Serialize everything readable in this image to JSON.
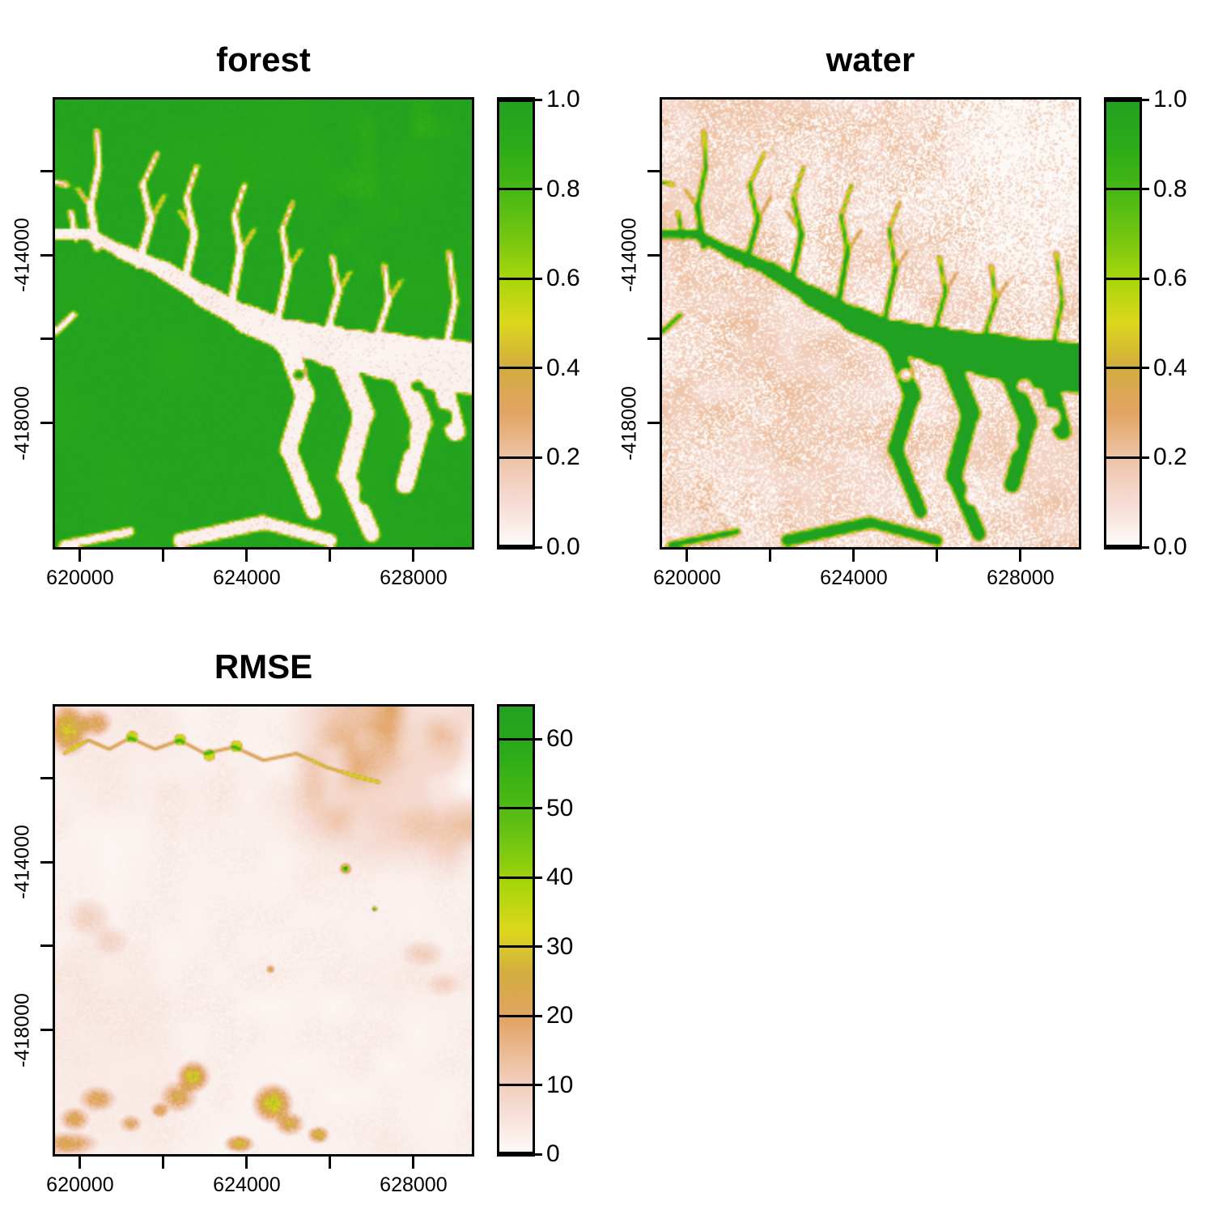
{
  "figure": {
    "background": "#ffffff",
    "text_color": "#000000",
    "layout": "2x2 grid, bottom-right cell empty"
  },
  "palette": {
    "description": "shared raster color ramp, low to high",
    "stops": [
      {
        "t": 0.0,
        "color": "#fdfbfa"
      },
      {
        "t": 0.1,
        "color": "#f6dcd3"
      },
      {
        "t": 0.2,
        "color": "#eec3a6"
      },
      {
        "t": 0.3,
        "color": "#e2a463"
      },
      {
        "t": 0.4,
        "color": "#d2ab41"
      },
      {
        "t": 0.5,
        "color": "#dcd71c"
      },
      {
        "t": 0.6,
        "color": "#a8d60b"
      },
      {
        "t": 0.7,
        "color": "#70c511"
      },
      {
        "t": 0.8,
        "color": "#46b714"
      },
      {
        "t": 0.9,
        "color": "#2caa1a"
      },
      {
        "t": 1.0,
        "color": "#21a121"
      }
    ]
  },
  "chart_data": [
    {
      "type": "heatmap",
      "title": "forest",
      "x_range": [
        619400,
        629400
      ],
      "y_range": [
        -420950,
        -410300
      ],
      "x_ticks": [
        {
          "value": 620000,
          "label": "620000"
        },
        {
          "value": 622000,
          "label": ""
        },
        {
          "value": 624000,
          "label": "624000"
        },
        {
          "value": 626000,
          "label": ""
        },
        {
          "value": 628000,
          "label": "628000"
        }
      ],
      "y_ticks": [
        {
          "value": -412000,
          "label": ""
        },
        {
          "value": -414000,
          "label": "-414000"
        },
        {
          "value": -416000,
          "label": ""
        },
        {
          "value": -418000,
          "label": "-418000"
        }
      ],
      "legend": {
        "min": 0,
        "max": 1,
        "ticks": [
          {
            "value": 1.0,
            "label": "1.0"
          },
          {
            "value": 0.8,
            "label": "0.8"
          },
          {
            "value": 0.6,
            "label": "0.6"
          },
          {
            "value": 0.4,
            "label": "0.4"
          },
          {
            "value": 0.2,
            "label": "0.2"
          },
          {
            "value": 0.0,
            "label": "0.0"
          }
        ]
      },
      "pattern": "forest probability near 1 (green) over most of the map; dendritic river valley network near 0 (white-pink) entering from the west and widening eastward into an estuary with green islands; yellow-orange transition values (0.3-0.6) fringe the channels"
    },
    {
      "type": "heatmap",
      "title": "water",
      "x_range": [
        619400,
        629400
      ],
      "y_range": [
        -420950,
        -410300
      ],
      "x_ticks": [
        {
          "value": 620000,
          "label": "620000"
        },
        {
          "value": 622000,
          "label": ""
        },
        {
          "value": 624000,
          "label": "624000"
        },
        {
          "value": 626000,
          "label": ""
        },
        {
          "value": 628000,
          "label": "628000"
        }
      ],
      "y_ticks": [
        {
          "value": -412000,
          "label": ""
        },
        {
          "value": -414000,
          "label": "-414000"
        },
        {
          "value": -416000,
          "label": ""
        },
        {
          "value": -418000,
          "label": "-418000"
        }
      ],
      "legend": {
        "min": 0,
        "max": 1,
        "ticks": [
          {
            "value": 1.0,
            "label": "1.0"
          },
          {
            "value": 0.8,
            "label": "0.8"
          },
          {
            "value": 0.6,
            "label": "0.6"
          },
          {
            "value": 0.4,
            "label": "0.4"
          },
          {
            "value": 0.2,
            "label": "0.2"
          },
          {
            "value": 0.0,
            "label": "0.0"
          }
        ]
      },
      "pattern": "inverse of forest panel: water probability near 1 (solid green) along the dendritic channel network, near 0 on land shown as white with fine pink speckle; yellow rims along channel edges; upper-right land whiter"
    },
    {
      "type": "heatmap",
      "title": "RMSE",
      "x_range": [
        619400,
        629400
      ],
      "y_range": [
        -420950,
        -410300
      ],
      "x_ticks": [
        {
          "value": 620000,
          "label": "620000"
        },
        {
          "value": 622000,
          "label": ""
        },
        {
          "value": 624000,
          "label": "624000"
        },
        {
          "value": 626000,
          "label": ""
        },
        {
          "value": 628000,
          "label": "628000"
        }
      ],
      "y_ticks": [
        {
          "value": -412000,
          "label": ""
        },
        {
          "value": -414000,
          "label": "-414000"
        },
        {
          "value": -416000,
          "label": ""
        },
        {
          "value": -418000,
          "label": "-418000"
        }
      ],
      "legend": {
        "min": 0,
        "max": 64.7,
        "ticks": [
          {
            "value": 60,
            "label": "60"
          },
          {
            "value": 50,
            "label": "50"
          },
          {
            "value": 40,
            "label": "40"
          },
          {
            "value": 30,
            "label": "30"
          },
          {
            "value": 20,
            "label": "20"
          },
          {
            "value": 10,
            "label": "10"
          },
          {
            "value": 0,
            "label": "0"
          }
        ]
      },
      "pattern": "RMSE mostly near 0 (pale pink-white); orange mottled region (10-25) in the upper-right; thin wavy orange line with yellow segments across the top; orange-yellow patches (15-35) along the bottom-left; one small high-RMSE spot (~60, green core with orange ring) right of center and a tiny second spot below it"
    }
  ]
}
